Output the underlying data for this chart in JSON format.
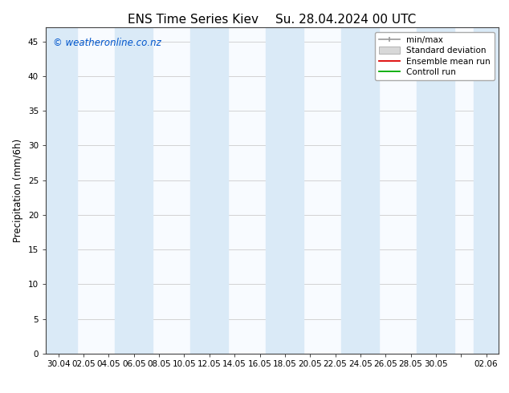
{
  "title_left": "ENS Time Series Kiev",
  "title_right": "Su. 28.04.2024 00 UTC",
  "ylabel": "Precipitation (mm/6h)",
  "ylim": [
    0,
    47
  ],
  "yticks": [
    0,
    5,
    10,
    15,
    20,
    25,
    30,
    35,
    40,
    45
  ],
  "xtick_labels": [
    "30.04",
    "02.05",
    "04.05",
    "06.05",
    "08.05",
    "10.05",
    "12.05",
    "14.05",
    "16.05",
    "18.05",
    "20.05",
    "22.05",
    "24.05",
    "26.05",
    "28.05",
    "30.05",
    "",
    "02.06"
  ],
  "shaded_bands": [
    {
      "xmin": -0.5,
      "xmax": 0.75
    },
    {
      "xmin": 2.25,
      "xmax": 3.75
    },
    {
      "xmin": 5.25,
      "xmax": 6.75
    },
    {
      "xmin": 8.25,
      "xmax": 9.75
    },
    {
      "xmin": 11.25,
      "xmax": 12.75
    },
    {
      "xmin": 14.25,
      "xmax": 15.75
    },
    {
      "xmin": 16.5,
      "xmax": 17.5
    }
  ],
  "band_color": "#daeaf7",
  "background_color": "#ffffff",
  "plot_bg_color": "#f8fbff",
  "watermark_text": "© weatheronline.co.nz",
  "watermark_color": "#0055cc",
  "tick_label_fontsize": 7.5,
  "title_fontsize": 11,
  "ylabel_fontsize": 8.5,
  "watermark_fontsize": 8.5,
  "legend_fontsize": 7.5
}
